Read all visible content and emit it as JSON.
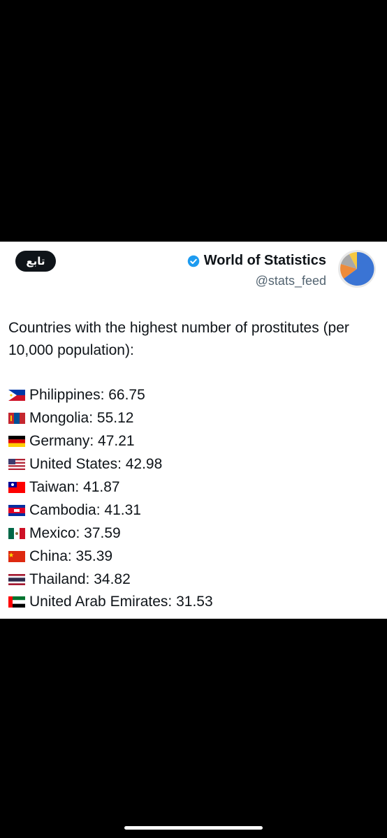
{
  "post": {
    "follow_label": "تابع",
    "display_name": "World of Statistics",
    "handle": "@stats_feed",
    "text": "Countries with the highest number of prostitutes (per 10,000 population):",
    "items": [
      {
        "flag": "philippines-flag-icon",
        "text": "Philippines: 66.75"
      },
      {
        "flag": "mongolia-flag-icon",
        "text": "Mongolia: 55.12"
      },
      {
        "flag": "germany-flag-icon",
        "text": "Germany: 47.21"
      },
      {
        "flag": "united-states-flag-icon",
        "text": "United States: 42.98"
      },
      {
        "flag": "taiwan-flag-icon",
        "text": "Taiwan: 41.87"
      },
      {
        "flag": "cambodia-flag-icon",
        "text": "Cambodia: 41.31"
      },
      {
        "flag": "mexico-flag-icon",
        "text": "Mexico: 37.59"
      },
      {
        "flag": "china-flag-icon",
        "text": "China: 35.39"
      },
      {
        "flag": "thailand-flag-icon",
        "text": "Thailand: 34.82"
      },
      {
        "flag": "uae-flag-icon",
        "text": "United Arab Emirates: 31.53"
      }
    ]
  },
  "colors": {
    "follow_bg": "#0f1419",
    "verified": "#1d9bf0",
    "handle": "#536471",
    "pie_blue": "#3a74d4",
    "pie_orange": "#ee8b3a",
    "pie_grey": "#a8a8a8",
    "pie_yellow": "#f5c842"
  }
}
